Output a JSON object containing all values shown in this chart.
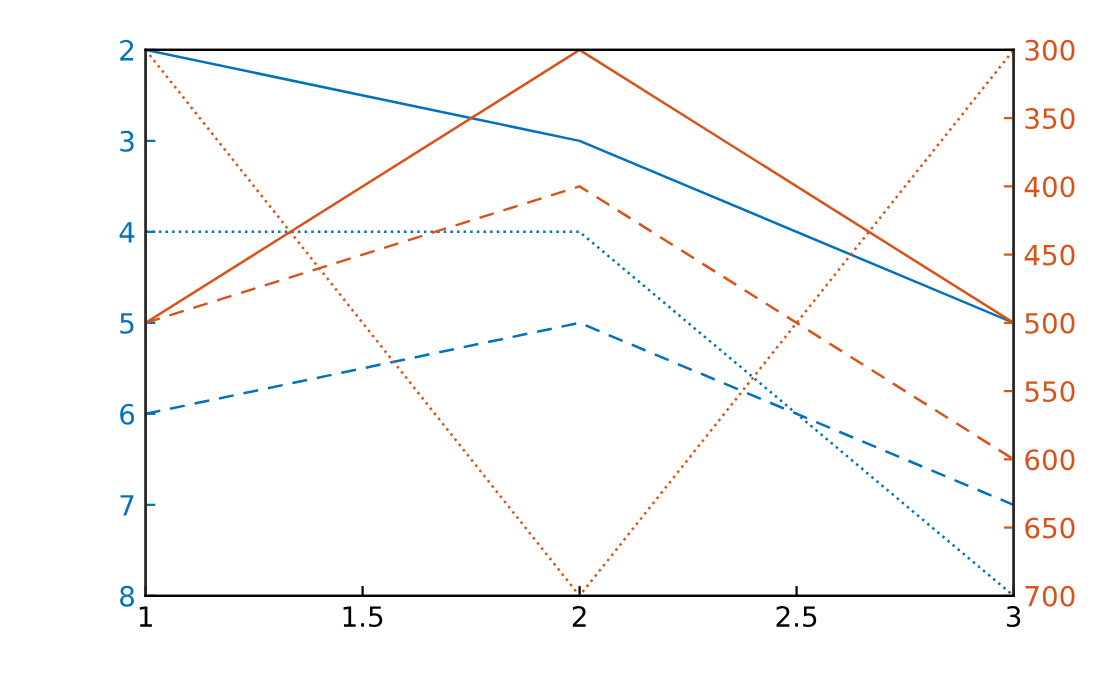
{
  "chart_data": {
    "type": "line",
    "x": [
      1,
      2,
      3
    ],
    "series": [
      {
        "color": "#0072bd",
        "values": [
          2,
          3,
          5
        ],
        "line_style": "solid"
      },
      {
        "color": "#0072bd",
        "values": [
          4,
          4,
          8
        ],
        "line_style": "dotted"
      },
      {
        "color": "#0072bd",
        "values": [
          6,
          5,
          7
        ],
        "line_style": "dashed"
      },
      {
        "color": "#d95319",
        "values": [
          500,
          300,
          500
        ],
        "line_style": "solid",
        "axis": "y2"
      },
      {
        "color": "#d95319",
        "values": [
          500,
          400,
          600
        ],
        "line_style": "dashed",
        "axis": "y2"
      },
      {
        "color": "#d95319",
        "values": [
          300,
          700,
          300
        ],
        "line_style": "dotted",
        "axis": "y2"
      }
    ],
    "xlim": [
      1,
      3
    ],
    "xticks": [
      1,
      1.5,
      2,
      2.5,
      3
    ],
    "ylim": [
      8,
      2
    ],
    "yticks": [
      2,
      3,
      4,
      5,
      6,
      7,
      8
    ],
    "y2lim": [
      700,
      300
    ],
    "y2ticks": [
      300,
      350,
      400,
      450,
      500,
      550,
      600,
      650,
      700
    ],
    "grid": false,
    "legend": false,
    "marker": "none"
  }
}
